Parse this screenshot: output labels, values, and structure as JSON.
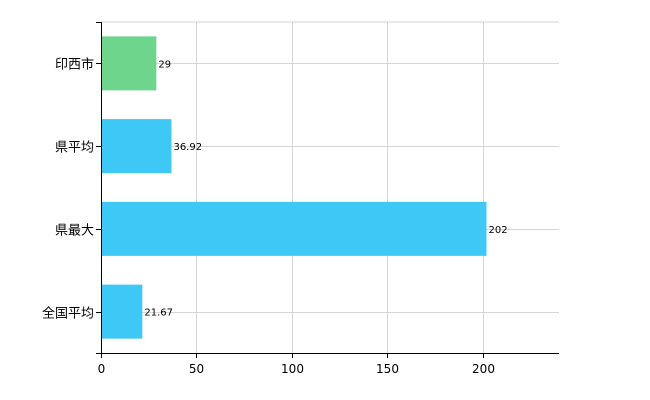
{
  "chart_data": {
    "type": "bar",
    "orientation": "horizontal",
    "categories": [
      "印西市",
      "県平均",
      "県最大",
      "全国平均"
    ],
    "values": [
      29,
      36.92,
      202,
      21.67
    ],
    "value_labels": [
      "29",
      "36.92",
      "202",
      "21.67"
    ],
    "colors": [
      "#6dd58c",
      "#3ec8f5",
      "#3ec8f5",
      "#3ec8f5"
    ],
    "xlim": [
      0,
      240
    ],
    "xticks": [
      0,
      50,
      100,
      150,
      200
    ],
    "grid": true,
    "legend": "none",
    "title": "",
    "xlabel": "",
    "ylabel": ""
  }
}
